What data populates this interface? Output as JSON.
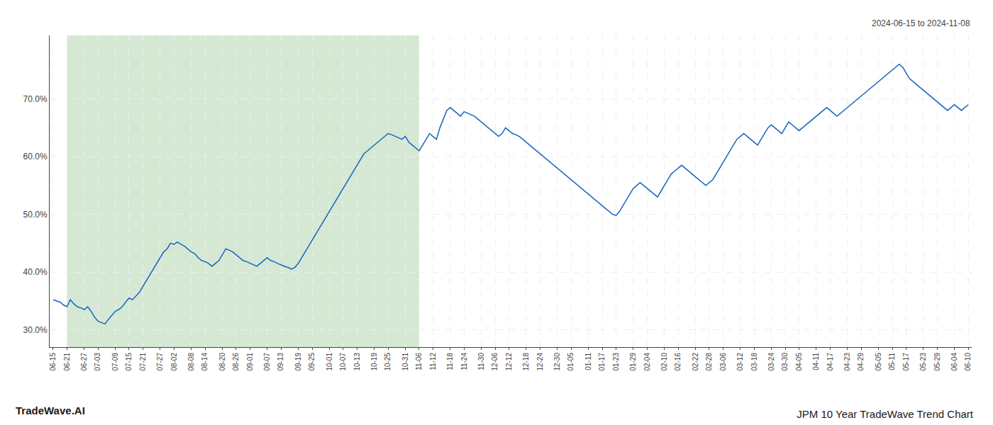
{
  "chart_data": {
    "type": "line",
    "title": "JPM 10 Year TradeWave Trend Chart",
    "subtitle": "2024-06-15 to 2024-11-08",
    "annotations": [
      "TradeWave.AI"
    ],
    "categories": [
      "06-15",
      null,
      null,
      null,
      "06-21",
      null,
      null,
      null,
      null,
      "06-27",
      null,
      null,
      null,
      "07-03",
      null,
      null,
      null,
      null,
      "07-09",
      null,
      null,
      null,
      "07-15",
      null,
      null,
      null,
      "07-21",
      null,
      null,
      null,
      null,
      "07-27",
      null,
      null,
      null,
      "08-02",
      null,
      null,
      null,
      null,
      "08-08",
      null,
      null,
      null,
      "08-14",
      null,
      null,
      null,
      null,
      "08-20",
      null,
      null,
      null,
      "08-26",
      null,
      null,
      null,
      "09-01",
      null,
      null,
      null,
      null,
      "09-07",
      null,
      null,
      null,
      "09-13",
      null,
      null,
      null,
      null,
      "09-19",
      null,
      null,
      null,
      "09-25",
      null,
      null,
      null,
      null,
      "10-01",
      null,
      null,
      null,
      "10-07",
      null,
      null,
      null,
      "10-13",
      null,
      null,
      null,
      null,
      "10-19",
      null,
      null,
      null,
      "10-25",
      null,
      null,
      null,
      null,
      "10-31",
      null,
      null,
      null,
      "11-06",
      null,
      null,
      null,
      "11-12",
      null,
      null,
      null,
      null,
      "11-18",
      null,
      null,
      null,
      "11-24",
      null,
      null,
      null,
      null,
      "11-30",
      null,
      null,
      null,
      "12-06",
      null,
      null,
      null,
      "12-12",
      null,
      null,
      null,
      null,
      "12-18",
      null,
      null,
      null,
      "12-24",
      null,
      null,
      null,
      null,
      "12-30",
      null,
      null,
      null,
      "01-05",
      null,
      null,
      null,
      null,
      "01-11",
      null,
      null,
      null,
      "01-17",
      null,
      null,
      null,
      "01-23",
      null,
      null,
      null,
      null,
      "01-29",
      null,
      null,
      null,
      "02-04",
      null,
      null,
      null,
      null,
      "02-10",
      null,
      null,
      null,
      "02-16",
      null,
      null,
      null,
      null,
      "02-22",
      null,
      null,
      null,
      "02-28",
      null,
      null,
      null,
      "03-06",
      null,
      null,
      null,
      null,
      "03-12",
      null,
      null,
      null,
      "03-18",
      null,
      null,
      null,
      null,
      "03-24",
      null,
      null,
      null,
      "03-30",
      null,
      null,
      null,
      "04-05",
      null,
      null,
      null,
      null,
      "04-11",
      null,
      null,
      null,
      "04-17",
      null,
      null,
      null,
      null,
      "04-23",
      null,
      null,
      null,
      "04-29",
      null,
      null,
      null,
      null,
      "05-05",
      null,
      null,
      null,
      "05-11",
      null,
      null,
      null,
      "05-17",
      null,
      null,
      null,
      null,
      "05-23",
      null,
      null,
      null,
      "05-29",
      null,
      null,
      null,
      null,
      "06-04",
      null,
      null,
      null,
      "06-10"
    ],
    "values": [
      35.2,
      35.0,
      34.8,
      34.3,
      34.0,
      35.2,
      34.5,
      34.0,
      33.8,
      33.5,
      34.0,
      33.2,
      32.2,
      31.5,
      31.2,
      31.0,
      31.8,
      32.5,
      33.2,
      33.5,
      34.0,
      34.8,
      35.5,
      35.2,
      35.8,
      36.5,
      37.5,
      38.5,
      39.5,
      40.5,
      41.5,
      42.5,
      43.5,
      44.0,
      45.0,
      44.8,
      45.2,
      44.8,
      44.5,
      44.0,
      43.5,
      43.2,
      42.5,
      42.0,
      41.8,
      41.5,
      41.0,
      41.5,
      42.0,
      43.0,
      44.0,
      43.8,
      43.5,
      43.0,
      42.5,
      42.0,
      41.8,
      41.5,
      41.2,
      41.0,
      41.5,
      42.0,
      42.5,
      42.0,
      41.8,
      41.5,
      41.2,
      41.0,
      40.8,
      40.5,
      40.8,
      41.5,
      42.5,
      43.5,
      44.5,
      45.5,
      46.5,
      47.5,
      48.5,
      49.5,
      50.5,
      51.5,
      52.5,
      53.5,
      54.5,
      55.5,
      56.5,
      57.5,
      58.5,
      59.5,
      60.5,
      61.0,
      61.5,
      62.0,
      62.5,
      63.0,
      63.5,
      64.0,
      63.8,
      63.5,
      63.2,
      63.0,
      63.5,
      62.5,
      62.0,
      61.5,
      61.0,
      62.0,
      63.0,
      64.0,
      63.5,
      63.0,
      65.0,
      66.5,
      68.0,
      68.5,
      68.0,
      67.5,
      67.0,
      67.8,
      67.5,
      67.2,
      67.0,
      66.5,
      66.0,
      65.5,
      65.0,
      64.5,
      64.0,
      63.5,
      64.0,
      65.0,
      64.5,
      64.0,
      63.8,
      63.5,
      63.0,
      62.5,
      62.0,
      61.5,
      61.0,
      60.5,
      60.0,
      59.5,
      59.0,
      58.5,
      58.0,
      57.5,
      57.0,
      56.5,
      56.0,
      55.5,
      55.0,
      54.5,
      54.0,
      53.5,
      53.0,
      52.5,
      52.0,
      51.5,
      51.0,
      50.5,
      50.0,
      49.8,
      50.5,
      51.5,
      52.5,
      53.5,
      54.5,
      55.0,
      55.5,
      55.0,
      54.5,
      54.0,
      53.5,
      53.0,
      54.0,
      55.0,
      56.0,
      57.0,
      57.5,
      58.0,
      58.5,
      58.0,
      57.5,
      57.0,
      56.5,
      56.0,
      55.5,
      55.0,
      55.5,
      56.0,
      57.0,
      58.0,
      59.0,
      60.0,
      61.0,
      62.0,
      63.0,
      63.5,
      64.0,
      63.5,
      63.0,
      62.5,
      62.0,
      63.0,
      64.0,
      65.0,
      65.5,
      65.0,
      64.5,
      64.0,
      65.0,
      66.0,
      65.5,
      65.0,
      64.5,
      65.0,
      65.5,
      66.0,
      66.5,
      67.0,
      67.5,
      68.0,
      68.5,
      68.0,
      67.5,
      67.0,
      67.5,
      68.0,
      68.5,
      69.0,
      69.5,
      70.0,
      70.5,
      71.0,
      71.5,
      72.0,
      72.5,
      73.0,
      73.5,
      74.0,
      74.5,
      75.0,
      75.5,
      76.0,
      75.5,
      74.5,
      73.5,
      73.0,
      72.5,
      72.0,
      71.5,
      71.0,
      70.5,
      70.0,
      69.5,
      69.0,
      68.5,
      68.0,
      68.5,
      69.0,
      68.5,
      68.0,
      68.5,
      69.0
    ],
    "color": "#1565c0",
    "ylim": [
      27,
      81
    ],
    "yticks": [
      {
        "value": 30.0,
        "label": "30.0%"
      },
      {
        "value": 40.0,
        "label": "40.0%"
      },
      {
        "value": 50.0,
        "label": "50.0%"
      },
      {
        "value": 60.0,
        "label": "60.0%"
      },
      {
        "value": 70.0,
        "label": "70.0%"
      }
    ],
    "grid": true,
    "shade": {
      "start": "06-21",
      "end": "11-06",
      "color": "#d5e8d4"
    }
  }
}
